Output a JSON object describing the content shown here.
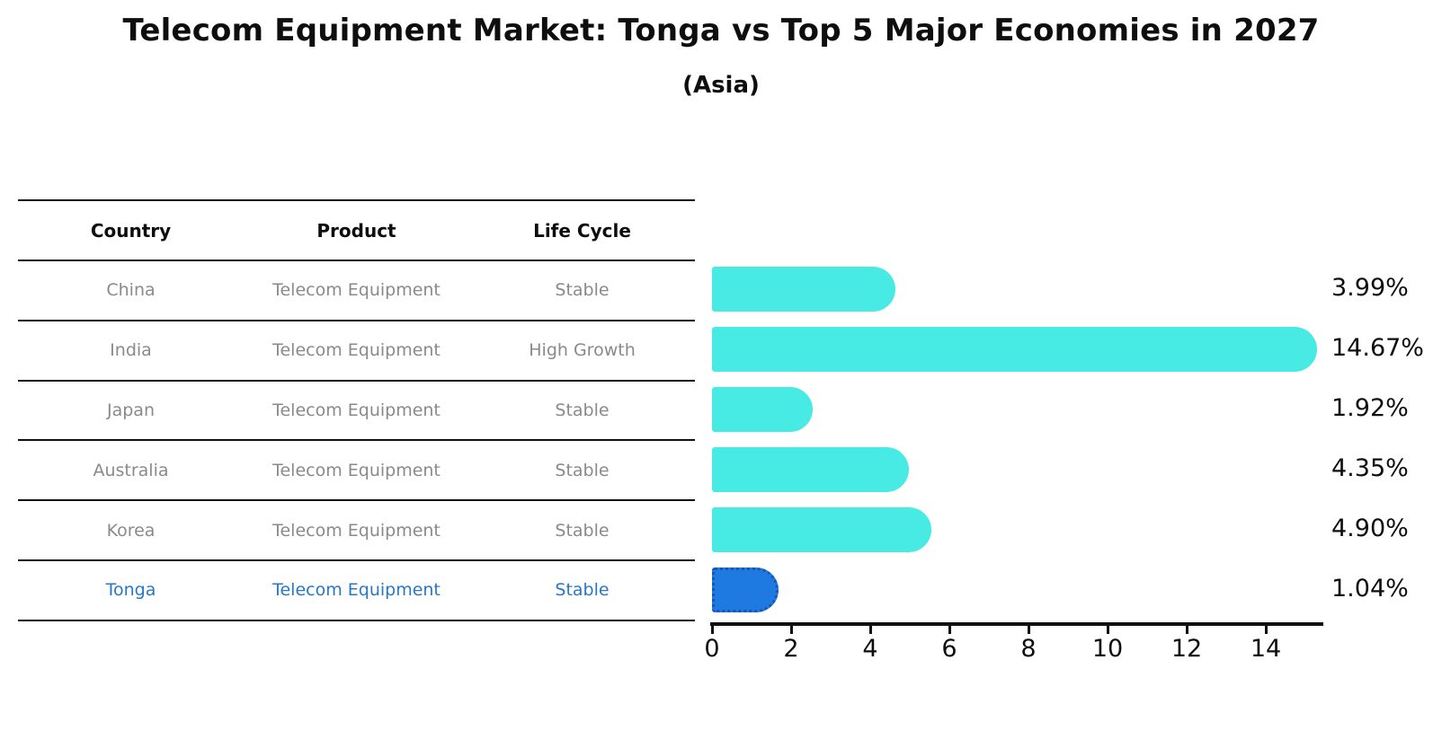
{
  "title": "Telecom Equipment Market: Tonga vs Top 5 Major Economies in 2027",
  "subtitle": "(Asia)",
  "table": {
    "headers": [
      "Country",
      "Product",
      "Life Cycle"
    ],
    "rows": [
      {
        "country": "China",
        "product": "Telecom Equipment",
        "life_cycle": "Stable",
        "highlight": false
      },
      {
        "country": "India",
        "product": "Telecom Equipment",
        "life_cycle": "High Growth",
        "highlight": false
      },
      {
        "country": "Japan",
        "product": "Telecom Equipment",
        "life_cycle": "Stable",
        "highlight": false
      },
      {
        "country": "Australia",
        "product": "Telecom Equipment",
        "life_cycle": "Stable",
        "highlight": false
      },
      {
        "country": "Korea",
        "product": "Telecom Equipment",
        "life_cycle": "Stable",
        "highlight": false
      },
      {
        "country": "Tonga",
        "product": "Telecom Equipment",
        "life_cycle": "Stable",
        "highlight": true
      }
    ]
  },
  "chart_data": {
    "type": "bar",
    "orientation": "horizontal",
    "categories": [
      "China",
      "India",
      "Japan",
      "Australia",
      "Korea",
      "Tonga"
    ],
    "values": [
      3.99,
      14.67,
      1.92,
      4.35,
      4.9,
      1.04
    ],
    "value_labels": [
      "3.99%",
      "14.67%",
      "1.92%",
      "4.35%",
      "4.90%",
      "1.04%"
    ],
    "highlight_index": 5,
    "x_ticks": [
      0,
      2,
      4,
      6,
      8,
      10,
      12,
      14
    ],
    "xlim": [
      0,
      15.4
    ],
    "grid": false,
    "legend": false,
    "xlabel": "",
    "ylabel": ""
  },
  "colors": {
    "bar": "#48EAE4",
    "highlight_bar": "#1E7AE0",
    "highlight_border": "#1C55AE",
    "highlight_text": "#2878C8",
    "table_text": "#8A8A8A",
    "axis": "#111111"
  }
}
